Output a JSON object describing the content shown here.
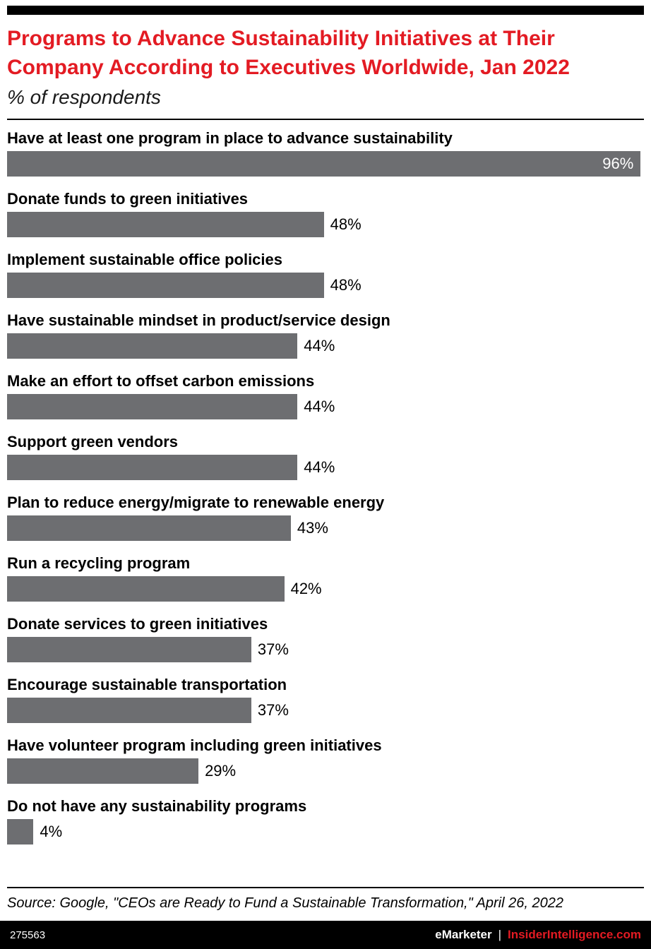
{
  "header": {
    "subtitle": "% of respondents"
  },
  "chart_data": {
    "type": "bar",
    "orientation": "horizontal",
    "title": "Programs to Advance Sustainability Initiatives at Their Company According to Executives Worldwide, Jan 2022",
    "subtitle": "% of respondents",
    "unit": "%",
    "xlim": [
      0,
      100
    ],
    "scale_max": 96.5,
    "inside_label_threshold": 90,
    "grid": false,
    "legend": "none",
    "bar_color": "#6d6e71",
    "categories": [
      "Have at least one program in place to advance sustainability",
      "Donate funds to green initiatives",
      "Implement sustainable office policies",
      "Have sustainable mindset in product/service design",
      "Make an effort to offset carbon emissions",
      "Support green vendors",
      "Plan to reduce energy/migrate to renewable energy",
      "Run a recycling program",
      "Donate services to green initiatives",
      "Encourage sustainable transportation",
      "Have volunteer program including green initiatives",
      "Do not have any sustainability programs"
    ],
    "values": [
      96,
      48,
      48,
      44,
      44,
      44,
      43,
      42,
      37,
      37,
      29,
      4
    ]
  },
  "source": "Source: Google, \"CEOs are Ready to Fund a Sustainable Transformation,\" April 26, 2022",
  "footer": {
    "chart_id": "275563",
    "brand": "eMarketer",
    "separator": "|",
    "site": "InsiderIntelligence.com"
  },
  "colors": {
    "accent_red": "#e31b23",
    "bar_gray": "#6d6e71",
    "footer_bg": "#000000"
  }
}
